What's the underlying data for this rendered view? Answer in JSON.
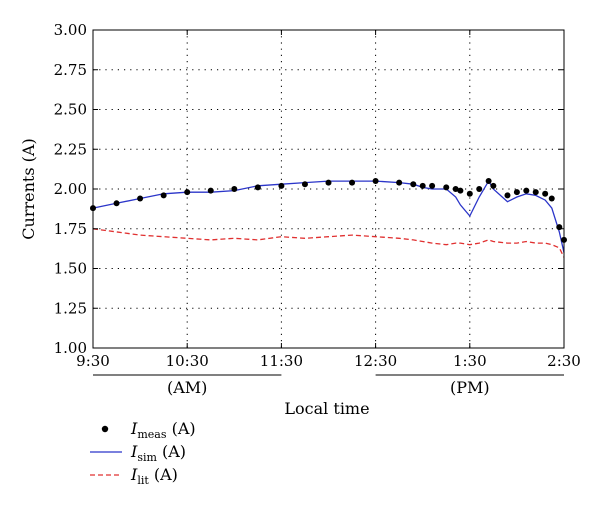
{
  "chart_data": {
    "type": "line",
    "xlabel": "Local time",
    "ylabel": "Currents (A)",
    "ylim": [
      1.0,
      3.0
    ],
    "xlim": [
      "9:30",
      "2:30"
    ],
    "grid": true,
    "y_ticks": [
      "1.00",
      "1.25",
      "1.50",
      "1.75",
      "2.00",
      "2.25",
      "2.50",
      "2.75",
      "3.00"
    ],
    "x_ticks": [
      "9:30",
      "10:30",
      "11:30",
      "12:30",
      "1:30",
      "2:30"
    ],
    "period_labels": [
      {
        "label": "(AM)",
        "from": "9:30",
        "to": "11:30"
      },
      {
        "label": "(PM)",
        "from": "12:30",
        "to": "2:30"
      }
    ],
    "x_hours": [
      0,
      0.25,
      0.5,
      0.75,
      1.0,
      1.25,
      1.5,
      1.75,
      2.0,
      2.25,
      2.5,
      2.75,
      3.0,
      3.25,
      3.4,
      3.5,
      3.6,
      3.75,
      3.85,
      3.9,
      4.0,
      4.1,
      4.2,
      4.25,
      4.4,
      4.5,
      4.6,
      4.7,
      4.8,
      4.87,
      4.95,
      5.0
    ],
    "series": [
      {
        "name": "I_meas (A)",
        "style": "dots",
        "color": "#000000",
        "values": [
          1.88,
          1.91,
          1.94,
          1.96,
          1.98,
          1.99,
          2.0,
          2.01,
          2.02,
          2.03,
          2.04,
          2.04,
          2.05,
          2.04,
          2.03,
          2.02,
          2.02,
          2.01,
          2.0,
          1.99,
          1.97,
          2.0,
          2.05,
          2.02,
          1.96,
          1.98,
          1.99,
          1.98,
          1.97,
          1.94,
          1.76,
          1.68
        ]
      },
      {
        "name": "I_sim (A)",
        "style": "solid",
        "color": "#2b35c9",
        "values": [
          1.88,
          1.91,
          1.94,
          1.97,
          1.98,
          1.98,
          1.99,
          2.02,
          2.03,
          2.04,
          2.05,
          2.05,
          2.05,
          2.04,
          2.03,
          2.01,
          2.0,
          2.0,
          1.95,
          1.9,
          1.83,
          1.95,
          2.05,
          2.0,
          1.92,
          1.95,
          1.97,
          1.96,
          1.93,
          1.88,
          1.73,
          1.6
        ]
      },
      {
        "name": "I_lit (A)",
        "style": "dashed",
        "color": "#e03030",
        "values": [
          1.75,
          1.73,
          1.71,
          1.7,
          1.69,
          1.68,
          1.69,
          1.68,
          1.7,
          1.69,
          1.7,
          1.71,
          1.7,
          1.69,
          1.68,
          1.67,
          1.66,
          1.65,
          1.66,
          1.66,
          1.65,
          1.66,
          1.68,
          1.67,
          1.66,
          1.66,
          1.67,
          1.66,
          1.66,
          1.65,
          1.63,
          1.57
        ]
      }
    ],
    "legend": {
      "position": "bottom-left",
      "items": [
        {
          "main": "I",
          "sub": "meas",
          "suffix": " (A)"
        },
        {
          "main": "I",
          "sub": "sim",
          "suffix": " (A)"
        },
        {
          "main": "I",
          "sub": "lit",
          "suffix": " (A)"
        }
      ]
    }
  }
}
